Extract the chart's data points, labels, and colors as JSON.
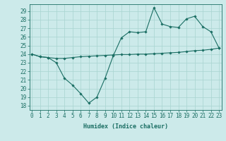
{
  "xlabel": "Humidex (Indice chaleur)",
  "x_values": [
    0,
    1,
    2,
    3,
    4,
    5,
    6,
    7,
    8,
    9,
    10,
    11,
    12,
    13,
    14,
    15,
    16,
    17,
    18,
    19,
    20,
    21,
    22,
    23
  ],
  "line1_y": [
    24.0,
    23.7,
    23.6,
    23.0,
    21.2,
    20.4,
    19.4,
    18.3,
    19.0,
    21.2,
    23.8,
    25.9,
    26.6,
    26.5,
    26.6,
    29.4,
    27.5,
    27.2,
    27.1,
    28.1,
    28.4,
    27.2,
    26.6,
    24.7
  ],
  "line2_y": [
    24.0,
    23.7,
    23.6,
    23.5,
    23.5,
    23.6,
    23.7,
    23.75,
    23.8,
    23.85,
    23.9,
    23.95,
    23.95,
    24.0,
    24.0,
    24.05,
    24.1,
    24.15,
    24.2,
    24.3,
    24.4,
    24.45,
    24.55,
    24.7
  ],
  "ylim": [
    17.5,
    29.8
  ],
  "yticks": [
    18,
    19,
    20,
    21,
    22,
    23,
    24,
    25,
    26,
    27,
    28,
    29
  ],
  "xlim": [
    -0.3,
    23.3
  ],
  "xticks": [
    0,
    1,
    2,
    3,
    4,
    5,
    6,
    7,
    8,
    9,
    10,
    11,
    12,
    13,
    14,
    15,
    16,
    17,
    18,
    19,
    20,
    21,
    22,
    23
  ],
  "line_color": "#1a6e63",
  "bg_color": "#cceaea",
  "grid_color": "#a8d4d0",
  "marker": "D",
  "marker_size": 1.8,
  "linewidth": 0.8,
  "tick_fontsize": 5.5,
  "xlabel_fontsize": 6.0
}
